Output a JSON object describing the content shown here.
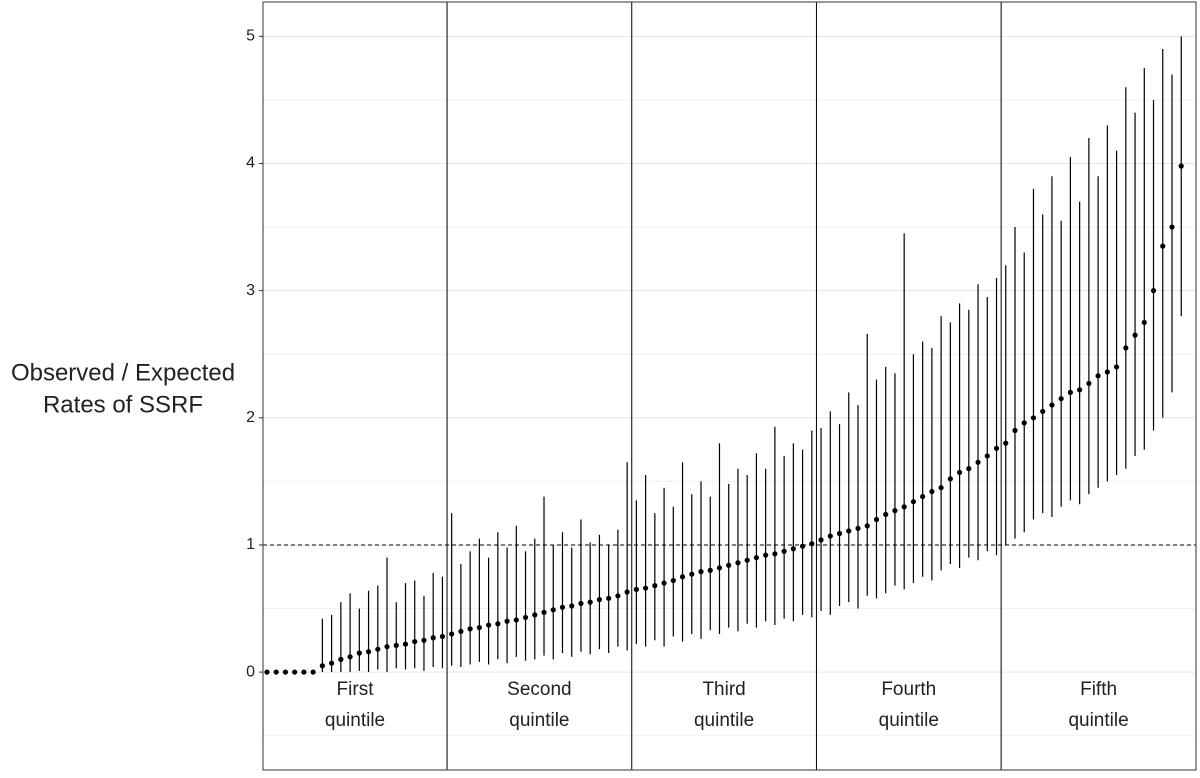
{
  "chart_data": {
    "type": "caterpillar",
    "ylabel": [
      "Observed / Expected",
      "Rates of SSRF"
    ],
    "x": [
      1,
      2,
      3,
      4,
      5,
      6,
      7,
      8,
      9,
      10,
      11,
      12,
      13,
      14,
      15,
      16,
      17,
      18,
      19,
      20,
      21,
      22,
      23,
      24,
      25,
      26,
      27,
      28,
      29,
      30,
      31,
      32,
      33,
      34,
      35,
      36,
      37,
      38,
      39,
      40,
      41,
      42,
      43,
      44,
      45,
      46,
      47,
      48,
      49,
      50,
      51,
      52,
      53,
      54,
      55,
      56,
      57,
      58,
      59,
      60,
      61,
      62,
      63,
      64,
      65,
      66,
      67,
      68,
      69,
      70,
      71,
      72,
      73,
      74,
      75,
      76,
      77,
      78,
      79,
      80,
      81,
      82,
      83,
      84,
      85,
      86,
      87,
      88,
      89,
      90,
      91,
      92,
      93,
      94,
      95,
      96,
      97,
      98,
      99,
      100
    ],
    "values": [
      0,
      0,
      0,
      0,
      0,
      0,
      0.05,
      0.07,
      0.1,
      0.12,
      0.15,
      0.16,
      0.18,
      0.2,
      0.21,
      0.22,
      0.24,
      0.25,
      0.27,
      0.28,
      0.3,
      0.32,
      0.34,
      0.35,
      0.37,
      0.38,
      0.4,
      0.41,
      0.43,
      0.45,
      0.47,
      0.49,
      0.51,
      0.52,
      0.54,
      0.55,
      0.57,
      0.58,
      0.6,
      0.63,
      0.65,
      0.66,
      0.68,
      0.7,
      0.72,
      0.75,
      0.77,
      0.79,
      0.8,
      0.82,
      0.84,
      0.86,
      0.88,
      0.9,
      0.92,
      0.93,
      0.95,
      0.97,
      0.99,
      1.01,
      1.04,
      1.07,
      1.09,
      1.11,
      1.13,
      1.15,
      1.2,
      1.24,
      1.27,
      1.3,
      1.34,
      1.38,
      1.42,
      1.45,
      1.52,
      1.57,
      1.6,
      1.65,
      1.7,
      1.76,
      1.8,
      1.9,
      1.96,
      2.0,
      2.05,
      2.1,
      2.15,
      2.2,
      2.22,
      2.27,
      2.33,
      2.36,
      2.4,
      2.55,
      2.65,
      2.75,
      3.0,
      3.35,
      3.5,
      3.98
    ],
    "lower": [
      0,
      0,
      0,
      0,
      0,
      0,
      0,
      0,
      0,
      0,
      0.01,
      0,
      0.02,
      0,
      0.03,
      0.02,
      0.03,
      0.01,
      0.04,
      0.03,
      0.05,
      0.04,
      0.06,
      0.08,
      0.06,
      0.1,
      0.07,
      0.12,
      0.09,
      0.1,
      0.13,
      0.1,
      0.15,
      0.12,
      0.16,
      0.14,
      0.18,
      0.15,
      0.2,
      0.17,
      0.22,
      0.2,
      0.25,
      0.2,
      0.28,
      0.24,
      0.3,
      0.26,
      0.33,
      0.3,
      0.35,
      0.32,
      0.38,
      0.35,
      0.4,
      0.37,
      0.42,
      0.4,
      0.45,
      0.43,
      0.48,
      0.45,
      0.52,
      0.55,
      0.5,
      0.6,
      0.58,
      0.62,
      0.68,
      0.65,
      0.7,
      0.75,
      0.72,
      0.8,
      0.85,
      0.82,
      0.9,
      0.88,
      0.95,
      0.92,
      1.0,
      1.05,
      1.1,
      1.2,
      1.25,
      1.22,
      1.3,
      1.35,
      1.32,
      1.4,
      1.45,
      1.5,
      1.55,
      1.6,
      1.7,
      1.75,
      1.9,
      2.0,
      2.2,
      2.8
    ],
    "upper": [
      0,
      0,
      0,
      0,
      0,
      0,
      0.42,
      0.45,
      0.55,
      0.62,
      0.5,
      0.64,
      0.68,
      0.9,
      0.55,
      0.7,
      0.72,
      0.6,
      0.78,
      0.75,
      1.25,
      0.85,
      0.95,
      1.05,
      0.9,
      1.1,
      0.98,
      1.15,
      0.95,
      1.05,
      1.38,
      1.0,
      1.1,
      0.98,
      1.2,
      1.02,
      1.08,
      1.0,
      1.12,
      1.65,
      1.35,
      1.55,
      1.25,
      1.45,
      1.3,
      1.65,
      1.4,
      1.5,
      1.38,
      1.8,
      1.48,
      1.6,
      1.55,
      1.72,
      1.6,
      1.93,
      1.7,
      1.8,
      1.75,
      1.9,
      1.92,
      2.05,
      1.95,
      2.2,
      2.1,
      2.66,
      2.3,
      2.4,
      2.35,
      3.45,
      2.5,
      2.6,
      2.55,
      2.8,
      2.75,
      2.9,
      2.85,
      3.05,
      2.95,
      3.1,
      3.2,
      3.5,
      3.3,
      3.8,
      3.6,
      3.9,
      3.55,
      4.05,
      3.7,
      4.2,
      3.9,
      4.3,
      4.1,
      4.6,
      4.4,
      4.75,
      4.5,
      4.9,
      4.7,
      5.0
    ],
    "color": "#000000",
    "xlim": [
      0.57,
      101.6
    ],
    "ylim": [
      -0.77,
      5.27
    ],
    "yticks": [
      0,
      1,
      2,
      3,
      4,
      5
    ],
    "y_minor_grid": [
      -0.5,
      0.5,
      1.5,
      2.5,
      3.5,
      4.5
    ],
    "grid": true,
    "reference_line": 1,
    "group_dividers": [
      20.5,
      40.5,
      60.5,
      80.5
    ],
    "group_labels": [
      [
        "First",
        "quintile"
      ],
      [
        "Second",
        "quintile"
      ],
      [
        "Third",
        "quintile"
      ],
      [
        "Fourth",
        "quintile"
      ],
      [
        "Fifth",
        "quintile"
      ]
    ]
  }
}
